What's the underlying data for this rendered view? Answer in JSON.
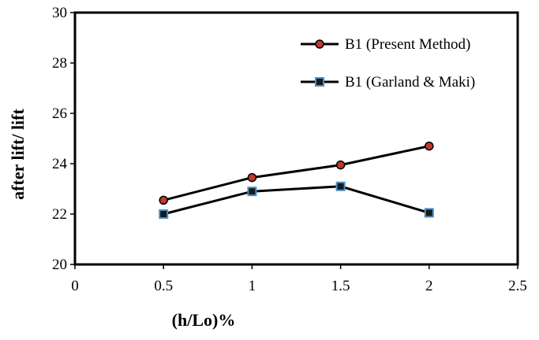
{
  "chart_data": {
    "type": "line",
    "title": "",
    "xlabel": "(h/Lo)%",
    "ylabel": "after lift/ lift",
    "xlim": [
      0,
      2.5
    ],
    "ylim": [
      20,
      30
    ],
    "xticks": [
      "0",
      "0.5",
      "1",
      "1.5",
      "2",
      "2.5"
    ],
    "yticks": [
      "20",
      "22",
      "24",
      "26",
      "28",
      "30"
    ],
    "grid": false,
    "legend_position": "top-right",
    "series": [
      {
        "name": "B1 (Present Method)",
        "marker": "circle",
        "marker_fill": "#c0392b",
        "marker_edge": "#000000",
        "line_color": "#000000",
        "x": [
          0.5,
          1,
          1.5,
          2
        ],
        "y": [
          22.55,
          23.45,
          23.95,
          24.7
        ]
      },
      {
        "name": "B1 (Garland & Maki)",
        "marker": "square",
        "marker_fill": "#1a1a1a",
        "marker_edge": "#4a90c8",
        "line_color": "#000000",
        "x": [
          0.5,
          1,
          1.5,
          2
        ],
        "y": [
          22.0,
          22.9,
          23.1,
          22.05
        ]
      }
    ]
  }
}
